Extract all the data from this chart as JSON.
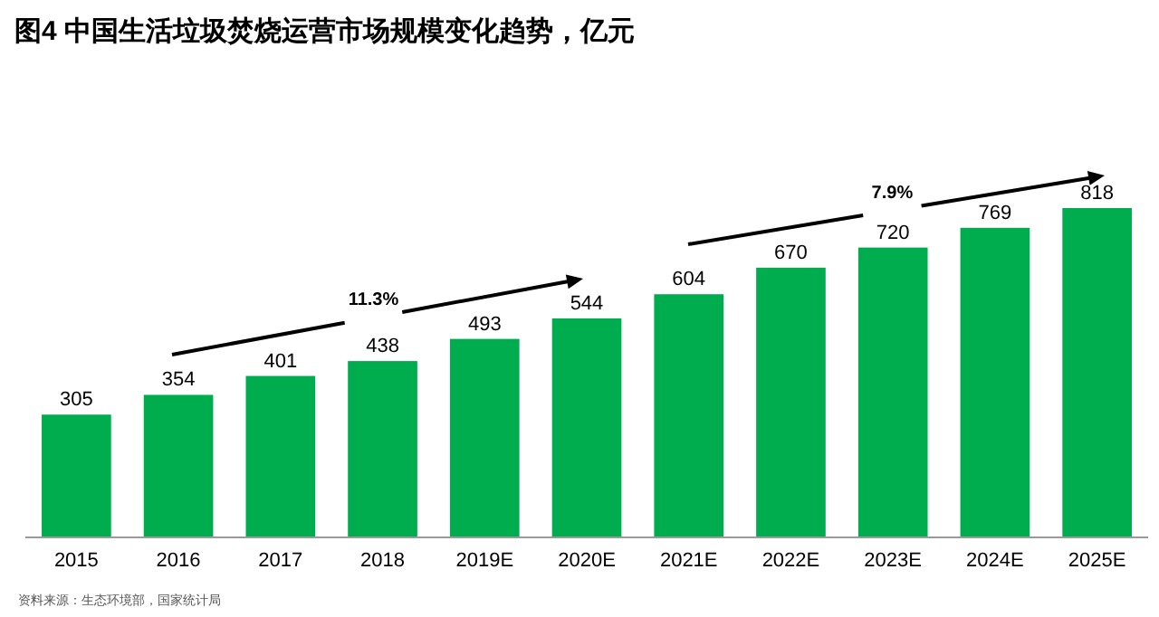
{
  "chart_data": {
    "type": "bar",
    "title": "图4 中国生活垃圾焚烧运营市场规模变化趋势，亿元",
    "categories": [
      "2015",
      "2016",
      "2017",
      "2018",
      "2019E",
      "2020E",
      "2021E",
      "2022E",
      "2023E",
      "2024E",
      "2025E"
    ],
    "values": [
      305,
      354,
      401,
      438,
      493,
      544,
      604,
      670,
      720,
      769,
      818
    ],
    "color": "#00ad4e",
    "data_labels": true,
    "annotations": [
      "11.3%",
      "7.9%",
      "资料来源：生态环境部，国家统计局"
    ]
  }
}
